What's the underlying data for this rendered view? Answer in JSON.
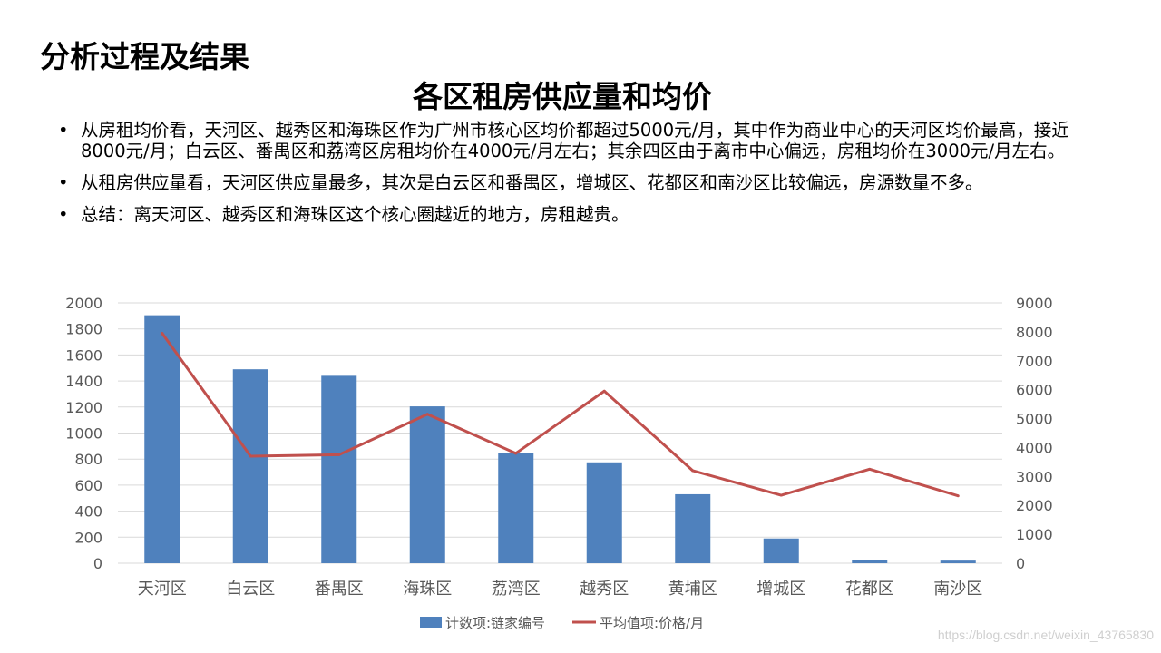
{
  "section_title": "分析过程及结果",
  "slide_title": "各区租房供应量和均价",
  "bullets": [
    "从房租均价看，天河区、越秀区和海珠区作为广州市核心区均价都超过5000元/月，其中作为商业中心的天河区均价最高，接近8000元/月；白云区、番禺区和荔湾区房租均价在4000元/月左右；其余四区由于离市中心偏远，房租均价在3000元/月左右。",
    "从租房供应量看，天河区供应量最多，其次是白云区和番禺区，增城区、花都区和南沙区比较偏远，房源数量不多。",
    "总结：离天河区、越秀区和海珠区这个核心圈越近的地方，房租越贵。"
  ],
  "bullet_symbol": "•",
  "watermark": "https://blog.csdn.net/weixin_43765830",
  "chart_data": {
    "type": "bar",
    "categories": [
      "天河区",
      "白云区",
      "番禺区",
      "海珠区",
      "荔湾区",
      "越秀区",
      "黄埔区",
      "增城区",
      "花都区",
      "南沙区"
    ],
    "series": [
      {
        "name": "计数项:链家编号",
        "type": "bar",
        "axis": "left",
        "color": "#4F81BD",
        "values": [
          1905,
          1490,
          1440,
          1205,
          845,
          775,
          530,
          190,
          25,
          20
        ]
      },
      {
        "name": "平均值项:价格/月",
        "type": "line",
        "axis": "right",
        "color": "#C0504D",
        "values": [
          7950,
          3700,
          3750,
          5150,
          3800,
          5950,
          3200,
          2350,
          3250,
          2330
        ]
      }
    ],
    "y_left": {
      "min": 0,
      "max": 2000,
      "step": 200,
      "ticks": [
        "0",
        "200",
        "400",
        "600",
        "800",
        "1000",
        "1200",
        "1400",
        "1600",
        "1800",
        "2000"
      ]
    },
    "y_right": {
      "min": 0,
      "max": 9000,
      "step": 1000,
      "ticks": [
        "0",
        "1000",
        "2000",
        "3000",
        "4000",
        "5000",
        "6000",
        "7000",
        "8000",
        "9000"
      ]
    },
    "grid": true,
    "legend_position": "bottom-center"
  }
}
